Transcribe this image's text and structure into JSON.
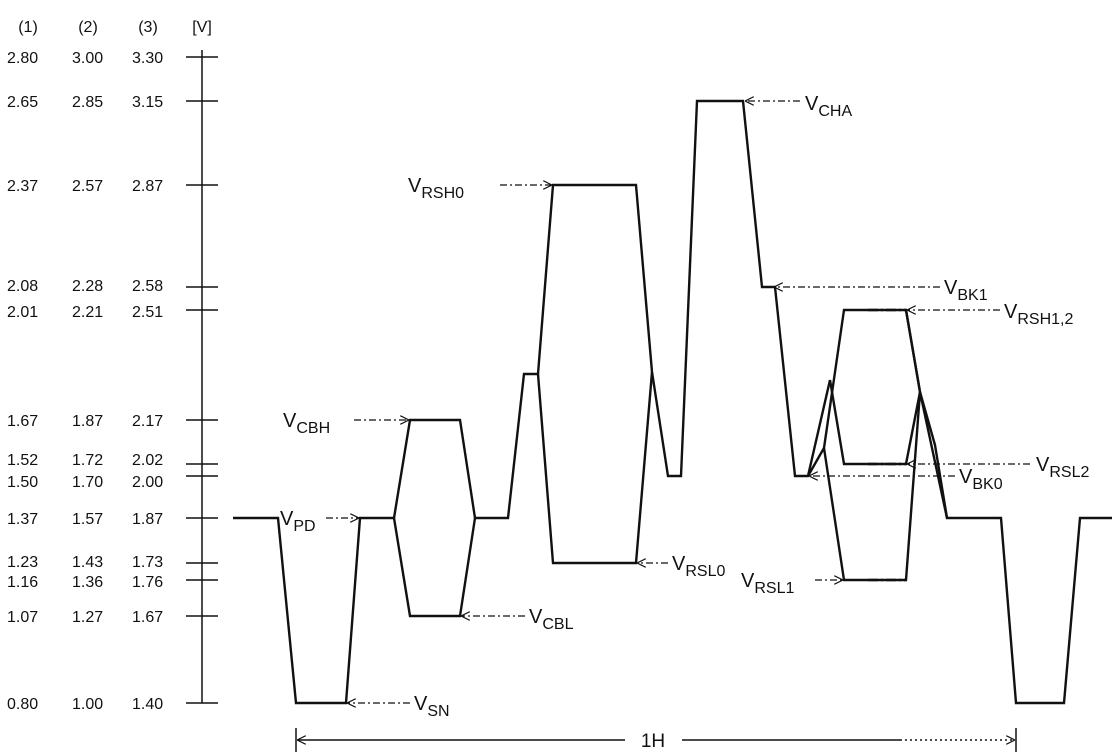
{
  "axis": {
    "column_headers": [
      "(1)",
      "(2)",
      "(3)",
      "[V]"
    ],
    "levels": [
      {
        "c1": "2.80",
        "c2": "3.00",
        "c3": "3.30"
      },
      {
        "c1": "2.65",
        "c2": "2.85",
        "c3": "3.15"
      },
      {
        "c1": "2.37",
        "c2": "2.57",
        "c3": "2.87"
      },
      {
        "c1": "2.08",
        "c2": "2.28",
        "c3": "2.58"
      },
      {
        "c1": "2.01",
        "c2": "2.21",
        "c3": "2.51"
      },
      {
        "c1": "1.67",
        "c2": "1.87",
        "c3": "2.17"
      },
      {
        "c1": "1.52",
        "c2": "1.72",
        "c3": "2.02"
      },
      {
        "c1": "1.50",
        "c2": "1.70",
        "c3": "2.00"
      },
      {
        "c1": "1.37",
        "c2": "1.57",
        "c3": "1.87"
      },
      {
        "c1": "1.23",
        "c2": "1.43",
        "c3": "1.73"
      },
      {
        "c1": "1.16",
        "c2": "1.36",
        "c3": "1.76"
      },
      {
        "c1": "1.07",
        "c2": "1.27",
        "c3": "1.67"
      },
      {
        "c1": "0.80",
        "c2": "1.00",
        "c3": "1.40"
      }
    ]
  },
  "labels": {
    "cha": {
      "base": "V",
      "sub": "CHA"
    },
    "rsh0": {
      "base": "V",
      "sub": "RSH0"
    },
    "bk1": {
      "base": "V",
      "sub": "BK1"
    },
    "rsh12": {
      "base": "V",
      "sub": "RSH1,2"
    },
    "cbh": {
      "base": "V",
      "sub": "CBH"
    },
    "rsl2": {
      "base": "V",
      "sub": "RSL2"
    },
    "bk0": {
      "base": "V",
      "sub": "BK0"
    },
    "pd": {
      "base": "V",
      "sub": "PD"
    },
    "rsl0": {
      "base": "V",
      "sub": "RSL0"
    },
    "rsl1": {
      "base": "V",
      "sub": "RSL1"
    },
    "cbl": {
      "base": "V",
      "sub": "CBL"
    },
    "sn": {
      "base": "V",
      "sub": "SN"
    }
  },
  "period_label": "1H",
  "colors": {
    "ink": "#111111",
    "background": "#ffffff"
  }
}
